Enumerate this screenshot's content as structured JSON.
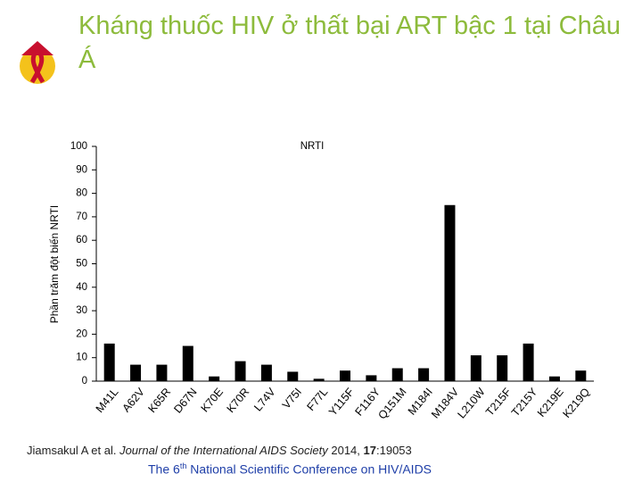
{
  "header": {
    "title": "Kháng thuốc HIV ở thất bại ART bậc 1 tại Châu Á"
  },
  "chart_data": {
    "type": "bar",
    "title": "NRTI",
    "y_label": "Phần trăm đột biến NRTI",
    "categories": [
      "M41L",
      "A62V",
      "K65R",
      "D67N",
      "K70E",
      "K70R",
      "L74V",
      "V75I",
      "F77L",
      "Y115F",
      "F116Y",
      "Q151M",
      "M184I",
      "M184V",
      "L210W",
      "T215F",
      "T215Y",
      "K219E",
      "K219Q"
    ],
    "values": [
      16,
      7,
      7,
      15,
      2,
      8.5,
      7,
      4,
      1,
      4.5,
      2.5,
      5.5,
      5.5,
      75,
      11,
      11,
      16,
      2,
      4.5
    ],
    "color": "#000000",
    "ylim": [
      0,
      100
    ],
    "yticks": [
      0,
      10,
      20,
      30,
      40,
      50,
      60,
      70,
      80,
      90,
      100
    ],
    "grid": false
  },
  "citation": {
    "authors": "Jiamsakul A et al.",
    "journal": "Journal of the International AIDS Society",
    "year": "2014,",
    "volume": "17",
    "article": ":19053"
  },
  "footer": {
    "prefix": "The 6",
    "sup": "th",
    "rest": "National Scientific Conference on HIV/AIDS"
  }
}
